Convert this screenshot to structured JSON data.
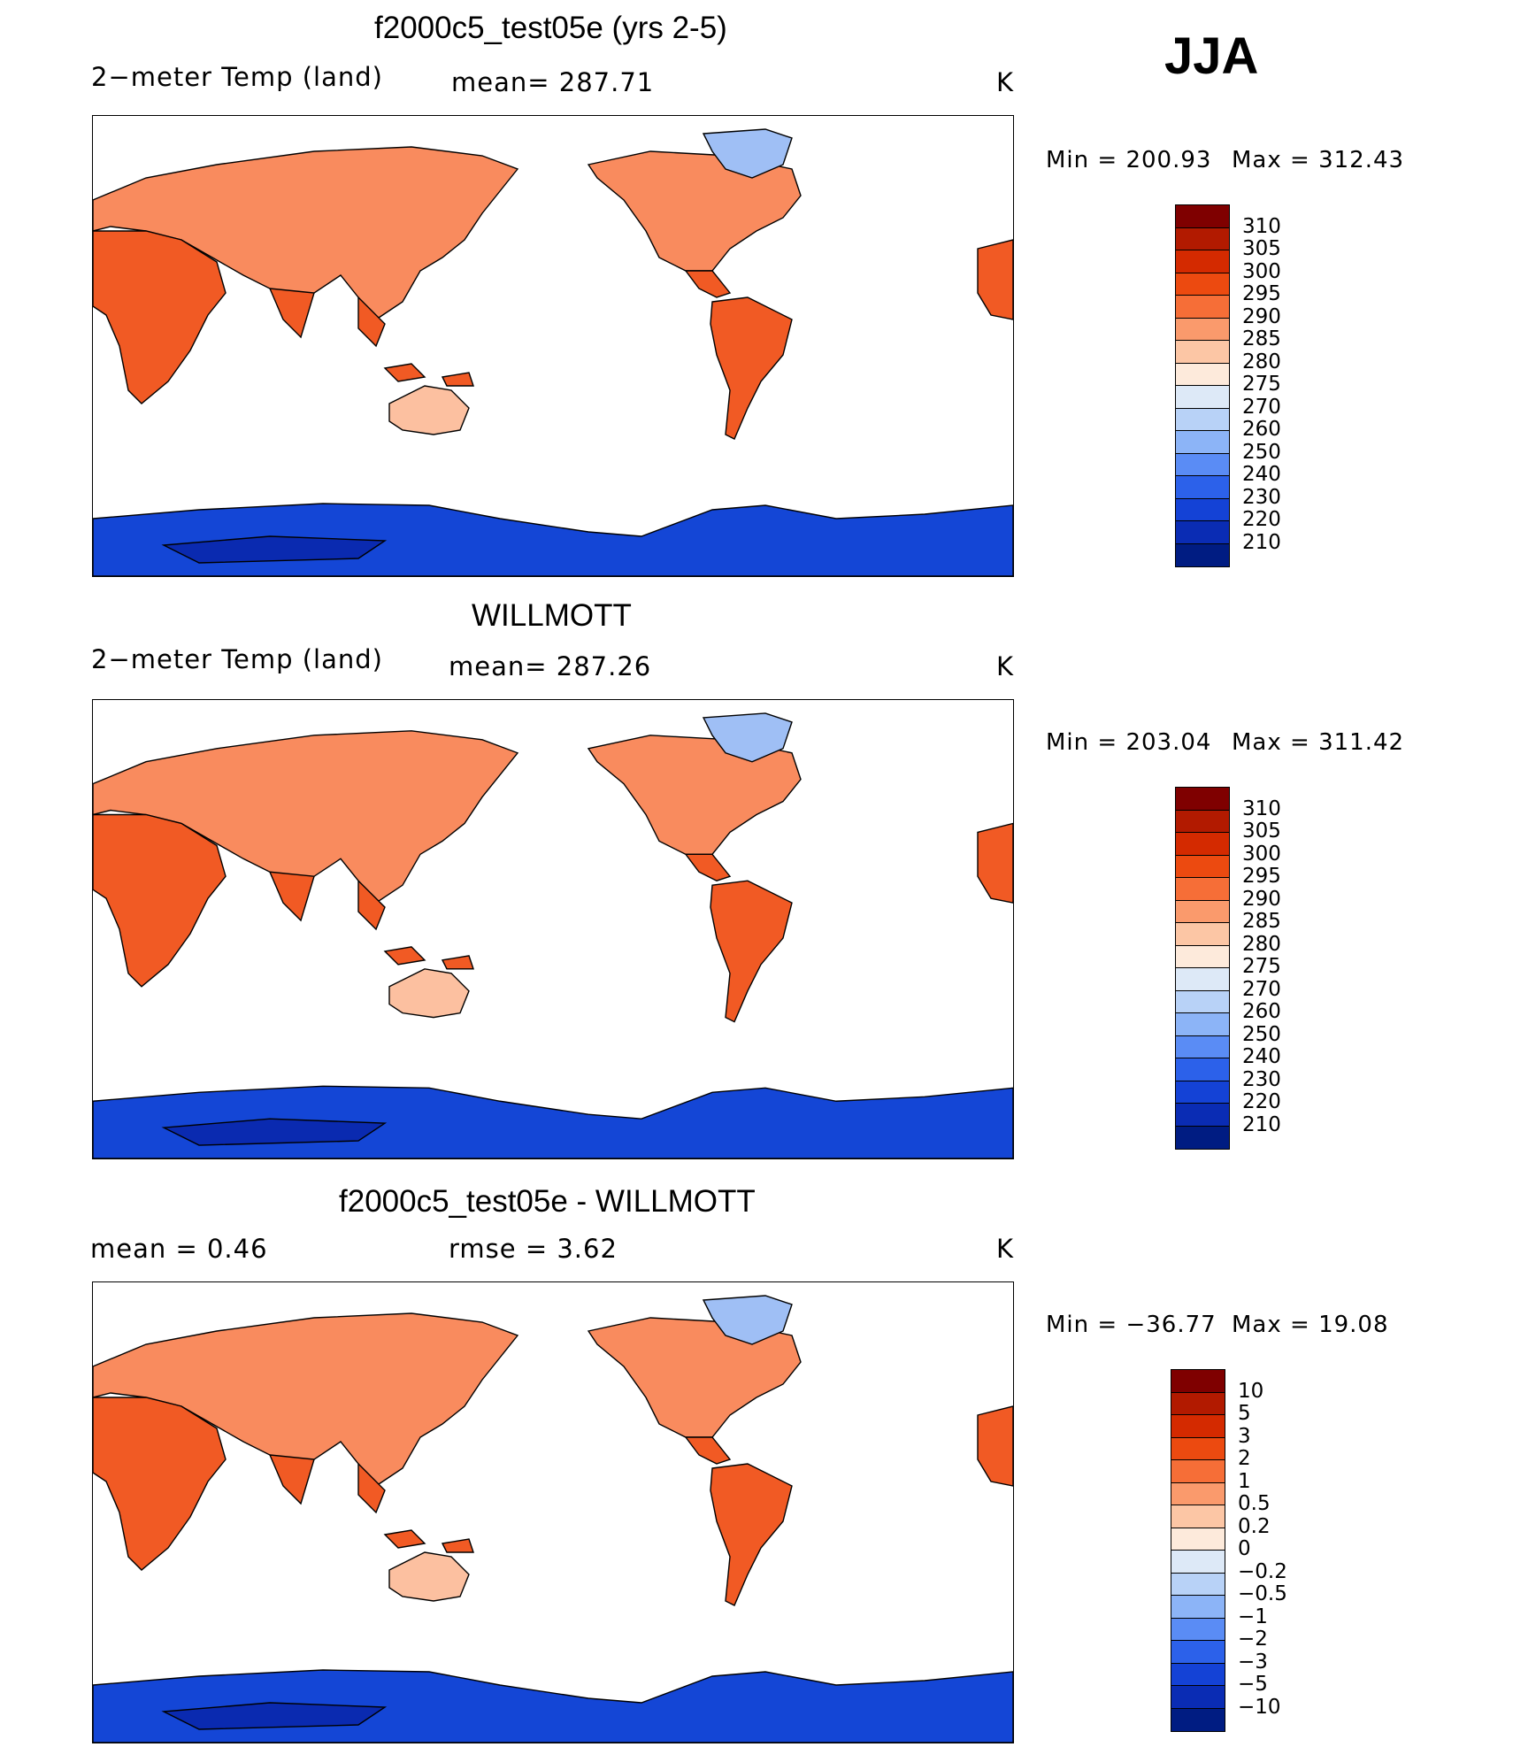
{
  "season": "JJA",
  "panels": [
    {
      "id": "model",
      "title": "f2000c5_test05e (yrs 2-5)",
      "left_label": "2−meter Temp (land)",
      "center_label": "mean= 287.71",
      "units": "K",
      "min_label": "Min  =  200.93",
      "max_label": "Max  =  312.43",
      "colorbar_labels": [
        "310",
        "305",
        "300",
        "295",
        "290",
        "285",
        "280",
        "275",
        "270",
        "260",
        "250",
        "240",
        "230",
        "220",
        "210"
      ],
      "colorbar_colors": [
        "#7f0000",
        "#b21a00",
        "#d42a00",
        "#ec4a10",
        "#f66e37",
        "#fa9a6c",
        "#fcc6a5",
        "#fdeadb",
        "#dde9f7",
        "#b8d2f7",
        "#8cb4f7",
        "#5a8cf5",
        "#2c61ea",
        "#1442d6",
        "#0a2cb4",
        "#001c82"
      ]
    },
    {
      "id": "obs",
      "title": "WILLMOTT",
      "left_label": "2−meter Temp (land)",
      "center_label": "mean= 287.26",
      "units": "K",
      "min_label": "Min  =  203.04",
      "max_label": "Max  =  311.42",
      "colorbar_labels": [
        "310",
        "305",
        "300",
        "295",
        "290",
        "285",
        "280",
        "275",
        "270",
        "260",
        "250",
        "240",
        "230",
        "220",
        "210"
      ],
      "colorbar_colors": [
        "#7f0000",
        "#b21a00",
        "#d42a00",
        "#ec4a10",
        "#f66e37",
        "#fa9a6c",
        "#fcc6a5",
        "#fdeadb",
        "#dde9f7",
        "#b8d2f7",
        "#8cb4f7",
        "#5a8cf5",
        "#2c61ea",
        "#1442d6",
        "#0a2cb4",
        "#001c82"
      ]
    },
    {
      "id": "diff",
      "title": "f2000c5_test05e - WILLMOTT",
      "left_label": "mean  =      0.46",
      "center_label": "rmse  =      3.62",
      "units": "K",
      "min_label": "Min  =  −36.77",
      "max_label": "Max  =     19.08",
      "colorbar_labels": [
        "10",
        "5",
        "3",
        "2",
        "1",
        "0.5",
        "0.2",
        "0",
        "−0.2",
        "−0.5",
        "−1",
        "−2",
        "−3",
        "−5",
        "−10"
      ],
      "colorbar_colors": [
        "#7f0000",
        "#b21a00",
        "#d42a00",
        "#ec4a10",
        "#f66e37",
        "#fa9a6c",
        "#fcc6a5",
        "#fdeadb",
        "#dde9f7",
        "#b8d2f7",
        "#8cb4f7",
        "#5a8cf5",
        "#2c61ea",
        "#1442d6",
        "#0a2cb4",
        "#001c82"
      ]
    }
  ],
  "colors": {
    "land_warm": "#f15a24",
    "land_mid": "#f98b5e",
    "land_cool": "#fcc0a0",
    "antarctica": "#1446d6",
    "antarctica_deep": "#0a2ab0",
    "greenland": "#9fbff5"
  }
}
